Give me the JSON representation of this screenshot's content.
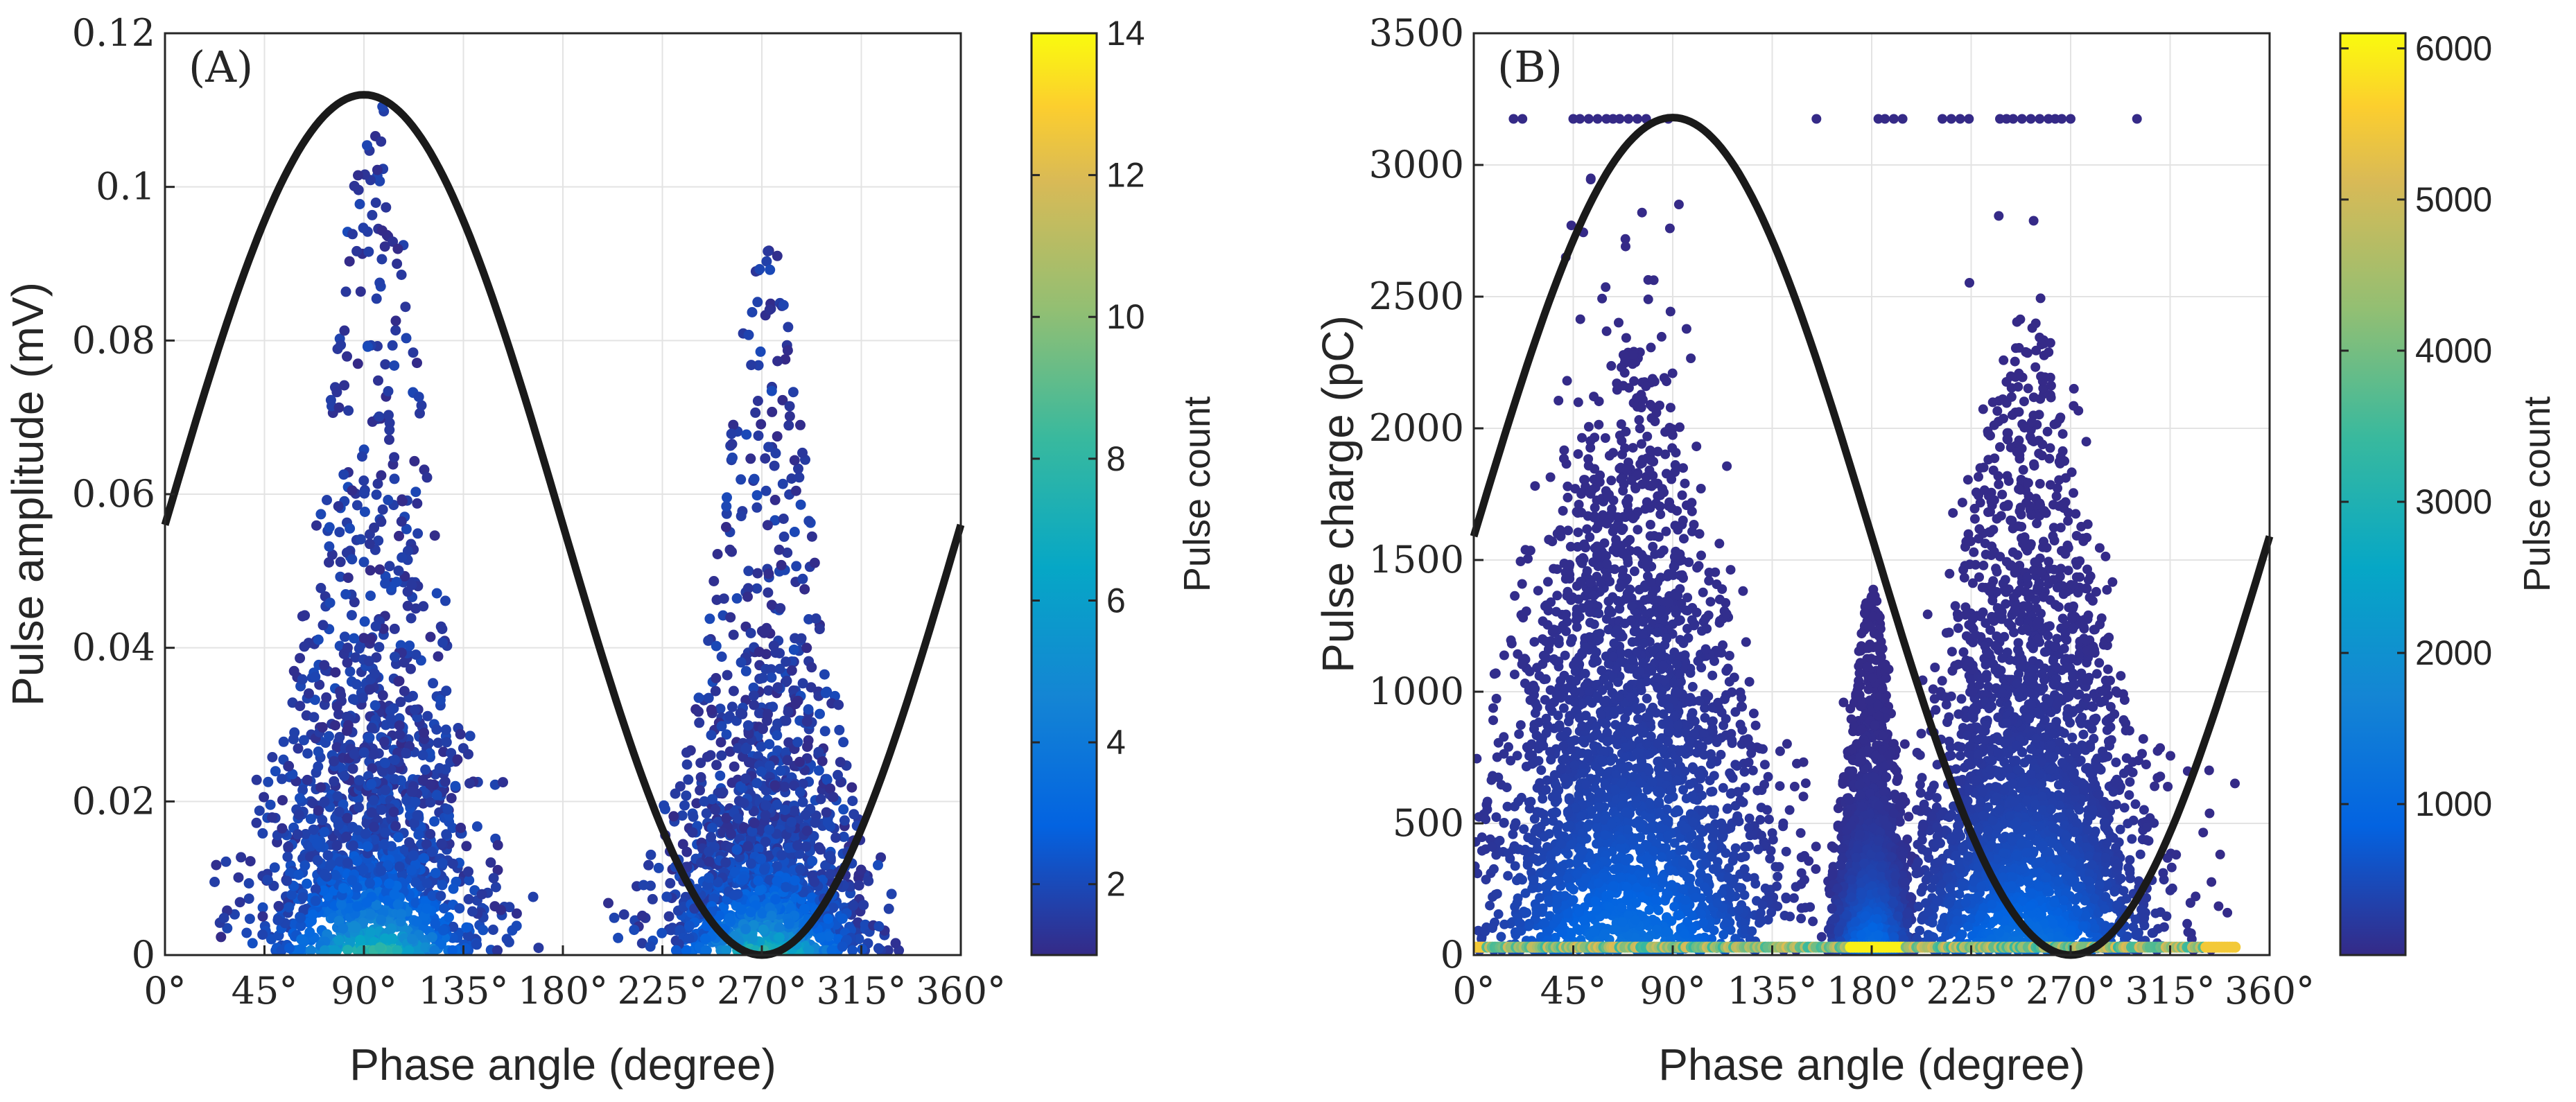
{
  "chart_data": [
    {
      "type": "scatter",
      "panel_label": "(A)",
      "xlabel": "Phase angle (degree)",
      "ylabel": "Pulse amplitude (mV)",
      "xlim": [
        0,
        360
      ],
      "ylim": [
        0,
        0.12
      ],
      "x_ticks": [
        0,
        45,
        90,
        135,
        180,
        225,
        270,
        315,
        360
      ],
      "x_tick_labels": [
        "0°",
        "45°",
        "90°",
        "135°",
        "180°",
        "225°",
        "270°",
        "315°",
        "360°"
      ],
      "y_ticks": [
        0,
        0.02,
        0.04,
        0.06,
        0.08,
        0.1,
        0.12
      ],
      "y_tick_labels": [
        "0",
        "0.02",
        "0.04",
        "0.06",
        "0.08",
        "0.1",
        "0.12"
      ],
      "grid": true,
      "reference_sine": {
        "offset": 0.056,
        "amplitude": 0.056,
        "period_deg": 360,
        "phase_deg": 0
      },
      "colorbar": {
        "label": "Pulse count",
        "range": [
          1,
          14
        ],
        "ticks": [
          2,
          4,
          6,
          8,
          10,
          12,
          14
        ],
        "tick_labels": [
          "2",
          "4",
          "6",
          "8",
          "10",
          "12",
          "14"
        ]
      },
      "clusters": [
        {
          "x_range": [
            18,
            175
          ],
          "center": 95,
          "spread": 42,
          "peak_y": 0.03,
          "tail_y": 0.112,
          "density": 1.0
        },
        {
          "x_range": [
            198,
            352
          ],
          "center": 272,
          "spread": 38,
          "peak_y": 0.026,
          "tail_y": 0.094,
          "density": 0.95
        }
      ]
    },
    {
      "type": "scatter",
      "panel_label": "(B)",
      "xlabel": "Phase angle (degree)",
      "ylabel": "Pulse charge (pC)",
      "xlim": [
        0,
        360
      ],
      "ylim": [
        0,
        3500
      ],
      "x_ticks": [
        0,
        45,
        90,
        135,
        180,
        225,
        270,
        315,
        360
      ],
      "x_tick_labels": [
        "0°",
        "45°",
        "90°",
        "135°",
        "180°",
        "225°",
        "270°",
        "315°",
        "360°"
      ],
      "y_ticks": [
        0,
        500,
        1000,
        1500,
        2000,
        2500,
        3000,
        3500
      ],
      "y_tick_labels": [
        "0",
        "500",
        "1000",
        "1500",
        "2000",
        "2500",
        "3000",
        "3500"
      ],
      "grid": true,
      "reference_sine": {
        "offset": 1590,
        "amplitude": 1590,
        "period_deg": 360,
        "phase_deg": 0
      },
      "saturation_level": 3175,
      "colorbar": {
        "label": "Pulse count",
        "range": [
          1,
          6100
        ],
        "ticks": [
          1000,
          2000,
          3000,
          4000,
          5000,
          6000
        ],
        "tick_labels": [
          "1000",
          "2000",
          "3000",
          "4000",
          "5000",
          "6000"
        ]
      },
      "clusters": [
        {
          "x_range": [
            0,
            160
          ],
          "center": 70,
          "spread": 55,
          "peak_y": 1450,
          "tail_y": 2300,
          "density": 1.0
        },
        {
          "x_range": [
            160,
            200
          ],
          "center": 180,
          "spread": 15,
          "peak_y": 700,
          "tail_y": 1400,
          "density": 0.6
        },
        {
          "x_range": [
            200,
            345
          ],
          "center": 250,
          "spread": 45,
          "peak_y": 1200,
          "tail_y": 2450,
          "density": 1.0
        }
      ]
    }
  ]
}
